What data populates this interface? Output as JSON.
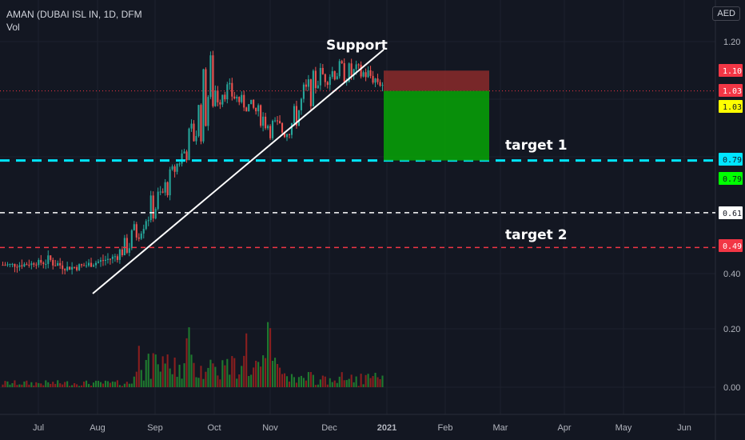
{
  "legend": {
    "title": "AMAN (DUBAI ISL IN, 1D, DFM",
    "volume_label": "Vol"
  },
  "currency": "AED",
  "chart_data": {
    "type": "candlestick",
    "symbol": "AMAN (DUBAI ISL IN, 1D, DFM",
    "price_axis": {
      "ticks": [
        "1.20",
        "0.40"
      ],
      "range": [
        0.27,
        1.27
      ]
    },
    "volume_axis": {
      "ticks": [
        "0.20",
        "0.00"
      ],
      "range": [
        -0.03,
        0.27
      ]
    },
    "time_axis": {
      "ticks": [
        "Jul",
        "Aug",
        "Sep",
        "Oct",
        "Nov",
        "Dec",
        "2021",
        "Feb",
        "Mar",
        "Apr",
        "May",
        "Jun"
      ]
    },
    "price_labels": [
      {
        "value": "1.10",
        "bg": "#f23645",
        "fg": "#ffffff"
      },
      {
        "value": "1.03",
        "bg": "#f23645",
        "fg": "#ffffff"
      },
      {
        "value": "1.03",
        "bg": "#ffff00",
        "fg": "#131722"
      },
      {
        "value": "0.79",
        "bg": "#00e5ff",
        "fg": "#131722"
      },
      {
        "value": "0.79",
        "bg": "#00ff00",
        "fg": "#131722"
      },
      {
        "value": "0.61",
        "bg": "#ffffff",
        "fg": "#131722"
      },
      {
        "value": "0.49",
        "bg": "#f23645",
        "fg": "#ffffff"
      }
    ],
    "horizontal_lines": [
      {
        "price": 0.79,
        "color": "#00e5ff",
        "style": "dashed-thick"
      },
      {
        "price": 0.61,
        "color": "#ffffff",
        "style": "dashed"
      },
      {
        "price": 0.49,
        "color": "#f23645",
        "style": "dashed"
      },
      {
        "price": 1.03,
        "color": "#f23645",
        "style": "dotted"
      }
    ],
    "position_tool": {
      "entry": 1.03,
      "stop": 1.1,
      "target": 0.79,
      "stop_color": "#8b2a2a",
      "target_color": "#089c08"
    },
    "annotations": [
      "Support",
      "target 1",
      "target 2"
    ],
    "colors": {
      "up": "#26a69a",
      "down": "#ef5350",
      "vol_up": "#1f7a2f",
      "vol_down": "#8b1f1f"
    },
    "ohlc_path": [
      [
        0.42,
        0.44
      ],
      [
        0.42,
        0.44
      ],
      [
        0.43,
        0.44
      ],
      [
        0.42,
        0.47
      ],
      [
        0.41,
        0.43
      ],
      [
        0.41,
        0.44
      ],
      [
        0.43,
        0.45
      ],
      [
        0.44,
        0.47
      ],
      [
        0.46,
        0.55
      ],
      [
        0.55,
        0.65
      ],
      [
        0.6,
        0.72
      ],
      [
        0.75,
        0.8
      ],
      [
        0.8,
        0.95
      ],
      [
        0.88,
        1.2
      ],
      [
        1.0,
        1.08
      ],
      [
        0.97,
        1.02
      ],
      [
        0.93,
        0.99
      ],
      [
        0.86,
        0.95
      ],
      [
        0.86,
        0.92
      ],
      [
        0.92,
        1.07
      ],
      [
        1.04,
        1.12
      ],
      [
        1.06,
        1.14
      ],
      [
        1.05,
        1.13
      ],
      [
        1.06,
        1.12
      ],
      [
        1.03,
        1.08
      ]
    ]
  },
  "notes": {
    "support": "Support",
    "target1": "target 1",
    "target2": "target 2"
  }
}
